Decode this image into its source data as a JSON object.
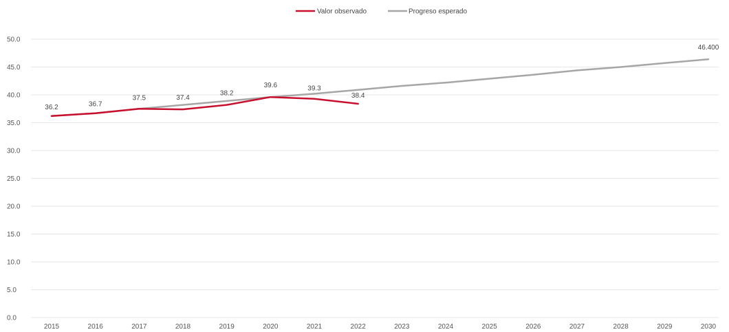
{
  "chart_data": {
    "type": "line",
    "title": "",
    "xlabel": "",
    "ylabel": "",
    "x": [
      2015,
      2016,
      2017,
      2018,
      2019,
      2020,
      2021,
      2022,
      2023,
      2024,
      2025,
      2026,
      2027,
      2028,
      2029,
      2030
    ],
    "x_tick_labels": [
      "2015",
      "2016",
      "2017",
      "2018",
      "2019",
      "2020",
      "2021",
      "2022",
      "2023",
      "2024",
      "2025",
      "2026",
      "2027",
      "2028",
      "2029",
      "2030"
    ],
    "ylim": [
      0,
      50
    ],
    "y_ticks": [
      0,
      5,
      10,
      15,
      20,
      25,
      30,
      35,
      40,
      45,
      50
    ],
    "y_tick_labels": [
      "0.0",
      "5.0",
      "10.0",
      "15.0",
      "20.0",
      "25.0",
      "30.0",
      "35.0",
      "40.0",
      "45.0",
      "50.0"
    ],
    "grid": true,
    "legend_position": "top-center",
    "series": [
      {
        "name": "Valor observado",
        "color": "#c8102e",
        "x": [
          2015,
          2016,
          2017,
          2018,
          2019,
          2020,
          2021,
          2022
        ],
        "values": [
          36.2,
          36.7,
          37.5,
          37.4,
          38.2,
          39.6,
          39.3,
          38.4
        ],
        "labels": [
          "36.2",
          "36.7",
          "37.5",
          "37.4",
          "38.2",
          "39.6",
          "39.3",
          "38.4"
        ]
      },
      {
        "name": "Progreso esperado",
        "color": "#a6a6a6",
        "x": [
          2015,
          2016,
          2017,
          2018,
          2019,
          2020,
          2021,
          2022,
          2023,
          2024,
          2025,
          2026,
          2027,
          2028,
          2029,
          2030
        ],
        "values": [
          36.2,
          36.7,
          37.5,
          38.2,
          38.9,
          39.6,
          40.2,
          40.9,
          41.6,
          42.2,
          42.9,
          43.6,
          44.4,
          45.0,
          45.7,
          46.4
        ],
        "end_label": "46.400"
      }
    ]
  }
}
